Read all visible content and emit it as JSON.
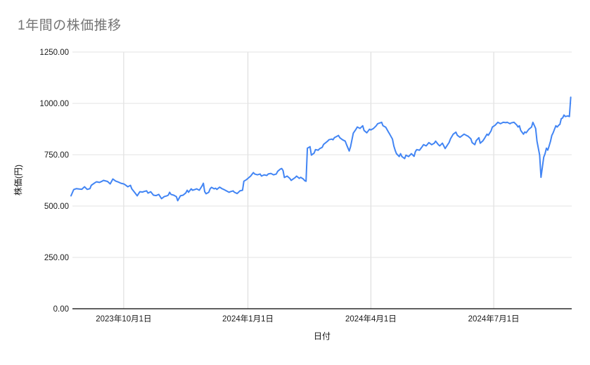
{
  "page": {
    "background": "#ffffff"
  },
  "chart_data": {
    "type": "line",
    "title": "1年間の株価推移",
    "xlabel": "日付",
    "ylabel": "株価(円)",
    "legend": "none",
    "grid": true,
    "ylim": [
      0,
      1250
    ],
    "x_range": [
      "2023-08-23",
      "2024-08-27"
    ],
    "line_color": "#4285f4",
    "title_color": "#757575",
    "grid_color": "#e3e3e3",
    "vgrid_color": "#d9d9d9",
    "axis_line_color": "#000000",
    "tick_label_color": "#1a1a1a",
    "y_ticks": [
      {
        "value": 0,
        "label": "0.00"
      },
      {
        "value": 250,
        "label": "250.00"
      },
      {
        "value": 500,
        "label": "500.00"
      },
      {
        "value": 750,
        "label": "750.00"
      },
      {
        "value": 1000,
        "label": "1000.00"
      },
      {
        "value": 1250,
        "label": "1250.00"
      }
    ],
    "x_ticks": [
      {
        "date": "2023-10-01",
        "label": "2023年10月1日"
      },
      {
        "date": "2024-01-01",
        "label": "2024年1月1日"
      },
      {
        "date": "2024-04-01",
        "label": "2024年4月1日"
      },
      {
        "date": "2024-07-01",
        "label": "2024年7月1日"
      }
    ],
    "points": [
      [
        "2023-08-23",
        550
      ],
      [
        "2023-08-25",
        580
      ],
      [
        "2023-08-27",
        585
      ],
      [
        "2023-08-29",
        583
      ],
      [
        "2023-08-31",
        582
      ],
      [
        "2023-09-01",
        588
      ],
      [
        "2023-09-02",
        594
      ],
      [
        "2023-09-04",
        581
      ],
      [
        "2023-09-06",
        585
      ],
      [
        "2023-09-07",
        601
      ],
      [
        "2023-09-10",
        615
      ],
      [
        "2023-09-11",
        618
      ],
      [
        "2023-09-13",
        615
      ],
      [
        "2023-09-15",
        621
      ],
      [
        "2023-09-16",
        625
      ],
      [
        "2023-09-19",
        620
      ],
      [
        "2023-09-21",
        608
      ],
      [
        "2023-09-23",
        632
      ],
      [
        "2023-09-25",
        622
      ],
      [
        "2023-09-27",
        617
      ],
      [
        "2023-09-29",
        611
      ],
      [
        "2023-10-01",
        608
      ],
      [
        "2023-10-02",
        604
      ],
      [
        "2023-10-04",
        594
      ],
      [
        "2023-10-06",
        601
      ],
      [
        "2023-10-07",
        584
      ],
      [
        "2023-10-09",
        567
      ],
      [
        "2023-10-11",
        550
      ],
      [
        "2023-10-13",
        570
      ],
      [
        "2023-10-15",
        568
      ],
      [
        "2023-10-16",
        571
      ],
      [
        "2023-10-18",
        574
      ],
      [
        "2023-10-19",
        563
      ],
      [
        "2023-10-21",
        570
      ],
      [
        "2023-10-23",
        553
      ],
      [
        "2023-10-25",
        551
      ],
      [
        "2023-10-27",
        557
      ],
      [
        "2023-10-29",
        536
      ],
      [
        "2023-10-31",
        546
      ],
      [
        "2023-11-02",
        550
      ],
      [
        "2023-11-03",
        553
      ],
      [
        "2023-11-04",
        567
      ],
      [
        "2023-11-05",
        557
      ],
      [
        "2023-11-07",
        553
      ],
      [
        "2023-11-09",
        546
      ],
      [
        "2023-11-10",
        526
      ],
      [
        "2023-11-12",
        550
      ],
      [
        "2023-11-14",
        553
      ],
      [
        "2023-11-16",
        564
      ],
      [
        "2023-11-17",
        577
      ],
      [
        "2023-11-18",
        567
      ],
      [
        "2023-11-20",
        584
      ],
      [
        "2023-11-21",
        577
      ],
      [
        "2023-11-23",
        581
      ],
      [
        "2023-11-24",
        584
      ],
      [
        "2023-11-26",
        577
      ],
      [
        "2023-11-28",
        598
      ],
      [
        "2023-11-29",
        611
      ],
      [
        "2023-11-30",
        570
      ],
      [
        "2023-12-01",
        560
      ],
      [
        "2023-12-03",
        567
      ],
      [
        "2023-12-04",
        584
      ],
      [
        "2023-12-05",
        591
      ],
      [
        "2023-12-07",
        584
      ],
      [
        "2023-12-08",
        587
      ],
      [
        "2023-12-09",
        581
      ],
      [
        "2023-12-11",
        592
      ],
      [
        "2023-12-13",
        584
      ],
      [
        "2023-12-14",
        581
      ],
      [
        "2023-12-16",
        574
      ],
      [
        "2023-12-18",
        567
      ],
      [
        "2023-12-19",
        570
      ],
      [
        "2023-12-21",
        574
      ],
      [
        "2023-12-22",
        567
      ],
      [
        "2023-12-24",
        561
      ],
      [
        "2023-12-25",
        567
      ],
      [
        "2023-12-26",
        574
      ],
      [
        "2023-12-28",
        577
      ],
      [
        "2023-12-29",
        621
      ],
      [
        "2023-12-31",
        629
      ],
      [
        "2024-01-01",
        635
      ],
      [
        "2024-01-03",
        646
      ],
      [
        "2024-01-05",
        663
      ],
      [
        "2024-01-06",
        656
      ],
      [
        "2024-01-08",
        652
      ],
      [
        "2024-01-10",
        656
      ],
      [
        "2024-01-11",
        646
      ],
      [
        "2024-01-13",
        652
      ],
      [
        "2024-01-15",
        649
      ],
      [
        "2024-01-16",
        656
      ],
      [
        "2024-01-18",
        659
      ],
      [
        "2024-01-20",
        652
      ],
      [
        "2024-01-22",
        656
      ],
      [
        "2024-01-23",
        669
      ],
      [
        "2024-01-25",
        680
      ],
      [
        "2024-01-26",
        683
      ],
      [
        "2024-01-27",
        673
      ],
      [
        "2024-01-28",
        639
      ],
      [
        "2024-01-30",
        646
      ],
      [
        "2024-02-01",
        635
      ],
      [
        "2024-02-02",
        625
      ],
      [
        "2024-02-05",
        639
      ],
      [
        "2024-02-06",
        646
      ],
      [
        "2024-02-08",
        635
      ],
      [
        "2024-02-09",
        640
      ],
      [
        "2024-02-11",
        632
      ],
      [
        "2024-02-12",
        624
      ],
      [
        "2024-02-13",
        621
      ],
      [
        "2024-02-14",
        782
      ],
      [
        "2024-02-16",
        789
      ],
      [
        "2024-02-17",
        748
      ],
      [
        "2024-02-19",
        758
      ],
      [
        "2024-02-20",
        775
      ],
      [
        "2024-02-22",
        772
      ],
      [
        "2024-02-23",
        779
      ],
      [
        "2024-02-25",
        786
      ],
      [
        "2024-02-26",
        800
      ],
      [
        "2024-02-29",
        816
      ],
      [
        "2024-03-01",
        823
      ],
      [
        "2024-03-03",
        826
      ],
      [
        "2024-03-04",
        823
      ],
      [
        "2024-03-05",
        833
      ],
      [
        "2024-03-07",
        840
      ],
      [
        "2024-03-08",
        844
      ],
      [
        "2024-03-09",
        833
      ],
      [
        "2024-03-11",
        823
      ],
      [
        "2024-03-13",
        816
      ],
      [
        "2024-03-14",
        799
      ],
      [
        "2024-03-16",
        768
      ],
      [
        "2024-03-17",
        789
      ],
      [
        "2024-03-19",
        855
      ],
      [
        "2024-03-21",
        874
      ],
      [
        "2024-03-22",
        885
      ],
      [
        "2024-03-24",
        878
      ],
      [
        "2024-03-26",
        891
      ],
      [
        "2024-03-27",
        868
      ],
      [
        "2024-03-29",
        857
      ],
      [
        "2024-03-31",
        874
      ],
      [
        "2024-04-01",
        871
      ],
      [
        "2024-04-03",
        878
      ],
      [
        "2024-04-05",
        891
      ],
      [
        "2024-04-06",
        901
      ],
      [
        "2024-04-09",
        908
      ],
      [
        "2024-04-10",
        891
      ],
      [
        "2024-04-12",
        884
      ],
      [
        "2024-04-14",
        861
      ],
      [
        "2024-04-15",
        850
      ],
      [
        "2024-04-17",
        826
      ],
      [
        "2024-04-18",
        793
      ],
      [
        "2024-04-19",
        772
      ],
      [
        "2024-04-20",
        755
      ],
      [
        "2024-04-22",
        741
      ],
      [
        "2024-04-23",
        755
      ],
      [
        "2024-04-24",
        741
      ],
      [
        "2024-04-26",
        731
      ],
      [
        "2024-04-27",
        748
      ],
      [
        "2024-04-29",
        741
      ],
      [
        "2024-05-01",
        755
      ],
      [
        "2024-05-03",
        742
      ],
      [
        "2024-05-04",
        765
      ],
      [
        "2024-05-05",
        775
      ],
      [
        "2024-05-07",
        772
      ],
      [
        "2024-05-09",
        789
      ],
      [
        "2024-05-10",
        799
      ],
      [
        "2024-05-12",
        793
      ],
      [
        "2024-05-14",
        809
      ],
      [
        "2024-05-16",
        799
      ],
      [
        "2024-05-18",
        806
      ],
      [
        "2024-05-19",
        816
      ],
      [
        "2024-05-21",
        799
      ],
      [
        "2024-05-22",
        793
      ],
      [
        "2024-05-24",
        806
      ],
      [
        "2024-05-26",
        780
      ],
      [
        "2024-05-27",
        790
      ],
      [
        "2024-05-29",
        810
      ],
      [
        "2024-05-30",
        828
      ],
      [
        "2024-06-01",
        850
      ],
      [
        "2024-06-03",
        860
      ],
      [
        "2024-06-04",
        845
      ],
      [
        "2024-06-06",
        835
      ],
      [
        "2024-06-08",
        845
      ],
      [
        "2024-06-09",
        850
      ],
      [
        "2024-06-11",
        843
      ],
      [
        "2024-06-12",
        840
      ],
      [
        "2024-06-14",
        828
      ],
      [
        "2024-06-15",
        809
      ],
      [
        "2024-06-17",
        799
      ],
      [
        "2024-06-18",
        818
      ],
      [
        "2024-06-20",
        833
      ],
      [
        "2024-06-21",
        806
      ],
      [
        "2024-06-23",
        818
      ],
      [
        "2024-06-24",
        828
      ],
      [
        "2024-06-26",
        850
      ],
      [
        "2024-06-27",
        845
      ],
      [
        "2024-06-29",
        866
      ],
      [
        "2024-06-30",
        885
      ],
      [
        "2024-07-02",
        893
      ],
      [
        "2024-07-04",
        908
      ],
      [
        "2024-07-06",
        901
      ],
      [
        "2024-07-08",
        908
      ],
      [
        "2024-07-10",
        906
      ],
      [
        "2024-07-11",
        908
      ],
      [
        "2024-07-13",
        901
      ],
      [
        "2024-07-14",
        905
      ],
      [
        "2024-07-16",
        908
      ],
      [
        "2024-07-18",
        895
      ],
      [
        "2024-07-19",
        885
      ],
      [
        "2024-07-20",
        891
      ],
      [
        "2024-07-21",
        868
      ],
      [
        "2024-07-23",
        850
      ],
      [
        "2024-07-24",
        861
      ],
      [
        "2024-07-25",
        857
      ],
      [
        "2024-07-27",
        874
      ],
      [
        "2024-07-29",
        885
      ],
      [
        "2024-07-30",
        908
      ],
      [
        "2024-08-01",
        878
      ],
      [
        "2024-08-02",
        816
      ],
      [
        "2024-08-04",
        748
      ],
      [
        "2024-08-05",
        640
      ],
      [
        "2024-08-06",
        690
      ],
      [
        "2024-08-07",
        738
      ],
      [
        "2024-08-08",
        755
      ],
      [
        "2024-08-09",
        782
      ],
      [
        "2024-08-10",
        772
      ],
      [
        "2024-08-11",
        793
      ],
      [
        "2024-08-12",
        815
      ],
      [
        "2024-08-13",
        844
      ],
      [
        "2024-08-14",
        857
      ],
      [
        "2024-08-15",
        874
      ],
      [
        "2024-08-16",
        891
      ],
      [
        "2024-08-17",
        885
      ],
      [
        "2024-08-18",
        893
      ],
      [
        "2024-08-19",
        898
      ],
      [
        "2024-08-20",
        925
      ],
      [
        "2024-08-21",
        929
      ],
      [
        "2024-08-22",
        943
      ],
      [
        "2024-08-23",
        936
      ],
      [
        "2024-08-25",
        939
      ],
      [
        "2024-08-26",
        936
      ],
      [
        "2024-08-27",
        1030
      ]
    ]
  }
}
